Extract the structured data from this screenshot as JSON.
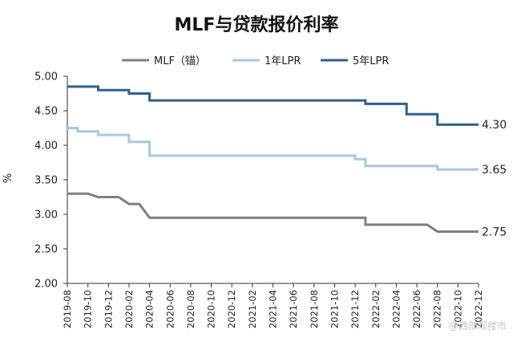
{
  "chart_data": {
    "type": "line",
    "title": "MLF与贷款报价利率",
    "ylabel": "%",
    "xlabel": "",
    "ylim": [
      2.0,
      5.0
    ],
    "y_ticks": [
      "5.00",
      "4.50",
      "4.00",
      "3.50",
      "3.00",
      "2.50",
      "2.00"
    ],
    "x_ticks": [
      "2019-08",
      "2019-10",
      "2019-12",
      "2020-02",
      "2020-04",
      "2020-06",
      "2020-08",
      "2020-10",
      "2020-12",
      "2021-02",
      "2021-04",
      "2021-06",
      "2021-08",
      "2021-10",
      "2021-12",
      "2022-02",
      "2022-04",
      "2022-06",
      "2022-08",
      "2022-10",
      "2022-12"
    ],
    "grid": false,
    "legend_position": "top",
    "series": [
      {
        "name": "MLF（锚）",
        "color": "#7f7f7f",
        "end_label": "2.75",
        "points": [
          [
            "2019-08",
            3.3
          ],
          [
            "2019-10",
            3.3
          ],
          [
            "2019-11",
            3.25
          ],
          [
            "2020-01",
            3.25
          ],
          [
            "2020-02",
            3.15
          ],
          [
            "2020-03",
            3.15
          ],
          [
            "2020-04",
            2.95
          ],
          [
            "2022-01",
            2.95
          ],
          [
            "2022-01",
            2.85
          ],
          [
            "2022-07",
            2.85
          ],
          [
            "2022-08",
            2.75
          ],
          [
            "2022-12",
            2.75
          ]
        ]
      },
      {
        "name": "1年LPR",
        "color": "#a6c8e6",
        "end_label": "3.65",
        "points": [
          [
            "2019-08",
            4.25
          ],
          [
            "2019-09",
            4.25
          ],
          [
            "2019-09",
            4.2
          ],
          [
            "2019-11",
            4.2
          ],
          [
            "2019-11",
            4.15
          ],
          [
            "2020-02",
            4.15
          ],
          [
            "2020-02",
            4.05
          ],
          [
            "2020-04",
            4.05
          ],
          [
            "2020-04",
            3.85
          ],
          [
            "2021-12",
            3.85
          ],
          [
            "2021-12",
            3.8
          ],
          [
            "2022-01",
            3.8
          ],
          [
            "2022-01",
            3.7
          ],
          [
            "2022-08",
            3.7
          ],
          [
            "2022-08",
            3.65
          ],
          [
            "2022-12",
            3.65
          ]
        ]
      },
      {
        "name": "5年LPR",
        "color": "#2e5f96",
        "end_label": "4.30",
        "points": [
          [
            "2019-08",
            4.85
          ],
          [
            "2019-11",
            4.85
          ],
          [
            "2019-11",
            4.8
          ],
          [
            "2020-02",
            4.8
          ],
          [
            "2020-02",
            4.75
          ],
          [
            "2020-04",
            4.75
          ],
          [
            "2020-04",
            4.65
          ],
          [
            "2022-01",
            4.65
          ],
          [
            "2022-01",
            4.6
          ],
          [
            "2022-05",
            4.6
          ],
          [
            "2022-05",
            4.45
          ],
          [
            "2022-08",
            4.45
          ],
          [
            "2022-08",
            4.3
          ],
          [
            "2022-12",
            4.3
          ]
        ]
      }
    ]
  },
  "watermark": "@西部观楼市"
}
